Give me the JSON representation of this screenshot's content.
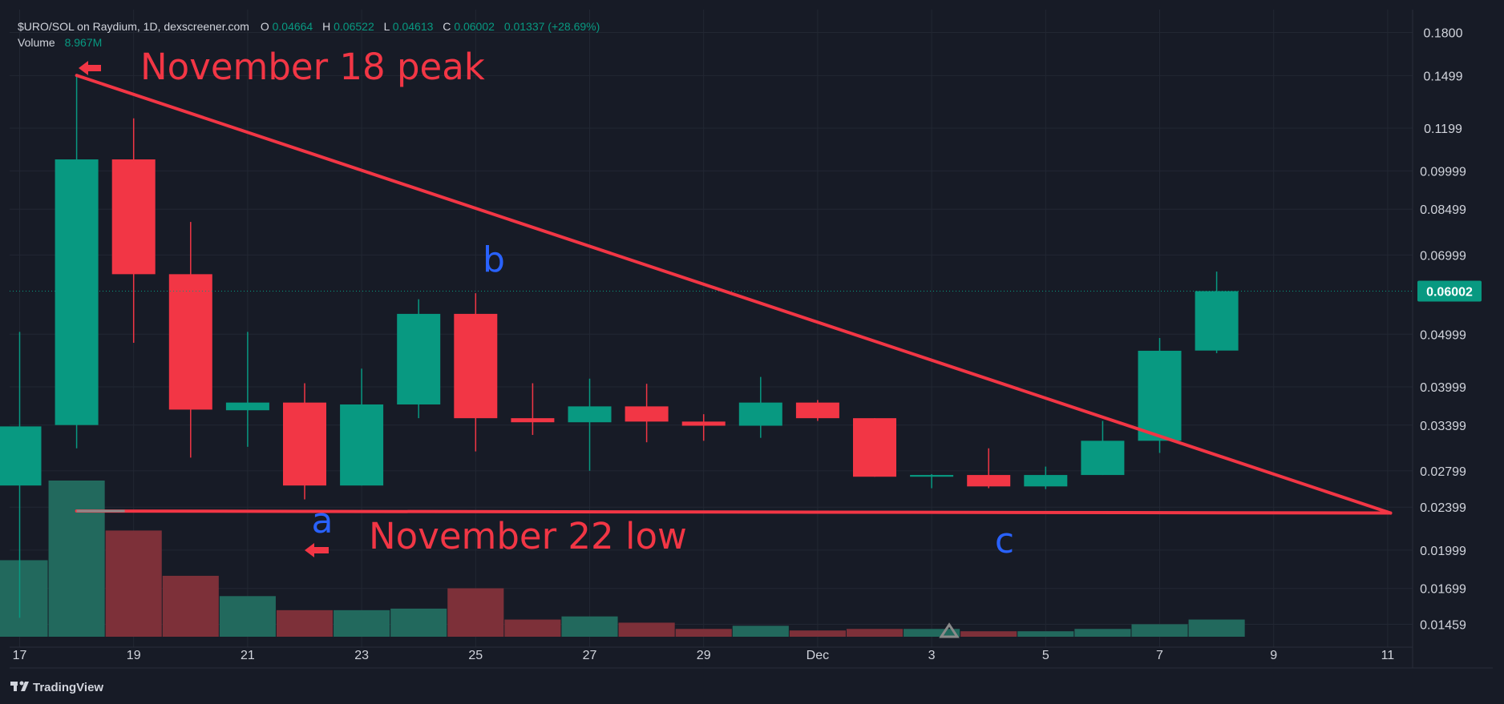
{
  "header": {
    "symbol": "$URO/SOL on Raydium, 1D, dexscreener.com",
    "o_label": "O",
    "o_value": "0.04664",
    "h_label": "H",
    "h_value": "0.06522",
    "l_label": "L",
    "l_value": "0.04613",
    "c_label": "C",
    "c_value": "0.06002",
    "change": "0.01337 (+28.69%)",
    "volume_label": "Volume",
    "volume_value": "8.967M"
  },
  "price_tag": "0.06002",
  "footer": {
    "brand": "TradingView"
  },
  "colors": {
    "background": "#171b26",
    "up": "#089981",
    "down": "#f23645",
    "up_volume": "#22695d",
    "down_volume": "#7d3039",
    "annotation_red": "#f23645",
    "annotation_blue": "#2962ff",
    "price_line": "#089981",
    "grid": "#222733"
  },
  "annotations": {
    "peak_label": "November 18 peak",
    "low_label": "November 22 low",
    "wave_a": "a",
    "wave_b": "b",
    "wave_c": "c"
  },
  "chart_data": {
    "type": "candlestick",
    "scale": "log",
    "grid": true,
    "ylim": [
      0.0142,
      0.195
    ],
    "y_ticks": [
      "0.1800",
      "0.1499",
      "0.1199",
      "0.09999",
      "0.08499",
      "0.06999",
      "0.04999",
      "0.03999",
      "0.03399",
      "0.02799",
      "0.02399",
      "0.01999",
      "0.01699",
      "0.01459"
    ],
    "x_ticks": [
      {
        "day": 17,
        "label": "17"
      },
      {
        "day": 19,
        "label": "19"
      },
      {
        "day": 21,
        "label": "21"
      },
      {
        "day": 23,
        "label": "23"
      },
      {
        "day": 25,
        "label": "25"
      },
      {
        "day": 27,
        "label": "27"
      },
      {
        "day": 29,
        "label": "29"
      },
      {
        "day": 31,
        "label": "Dec"
      },
      {
        "day": 33,
        "label": "3"
      },
      {
        "day": 35,
        "label": "5"
      },
      {
        "day": 37,
        "label": "7"
      },
      {
        "day": 39,
        "label": "9"
      },
      {
        "day": 41,
        "label": "11"
      }
    ],
    "candles": [
      {
        "date": "Nov 17",
        "day": 17,
        "open": 0.0263,
        "high": 0.0505,
        "low": 0.015,
        "close": 0.0338
      },
      {
        "date": "Nov 18",
        "day": 18,
        "open": 0.034,
        "high": 0.15,
        "low": 0.0308,
        "close": 0.105
      },
      {
        "date": "Nov 19",
        "day": 19,
        "open": 0.105,
        "high": 0.125,
        "low": 0.0482,
        "close": 0.0645
      },
      {
        "date": "Nov 20",
        "day": 20,
        "open": 0.0645,
        "high": 0.0805,
        "low": 0.0296,
        "close": 0.0363
      },
      {
        "date": "Nov 21",
        "day": 21,
        "open": 0.0362,
        "high": 0.0505,
        "low": 0.031,
        "close": 0.0374
      },
      {
        "date": "Nov 22",
        "day": 22,
        "open": 0.0374,
        "high": 0.0406,
        "low": 0.0248,
        "close": 0.0263
      },
      {
        "date": "Nov 23",
        "day": 23,
        "open": 0.0263,
        "high": 0.0432,
        "low": 0.0263,
        "close": 0.0371
      },
      {
        "date": "Nov 24",
        "day": 24,
        "open": 0.0371,
        "high": 0.058,
        "low": 0.035,
        "close": 0.0545
      },
      {
        "date": "Nov 25",
        "day": 25,
        "open": 0.0545,
        "high": 0.0595,
        "low": 0.0304,
        "close": 0.035
      },
      {
        "date": "Nov 26",
        "day": 26,
        "open": 0.035,
        "high": 0.0406,
        "low": 0.0326,
        "close": 0.0344
      },
      {
        "date": "Nov 27",
        "day": 27,
        "open": 0.0344,
        "high": 0.0414,
        "low": 0.028,
        "close": 0.0368
      },
      {
        "date": "Nov 28",
        "day": 28,
        "open": 0.0368,
        "high": 0.0405,
        "low": 0.0316,
        "close": 0.0345
      },
      {
        "date": "Nov 29",
        "day": 29,
        "open": 0.0345,
        "high": 0.0356,
        "low": 0.0318,
        "close": 0.0339
      },
      {
        "date": "Nov 30",
        "day": 30,
        "open": 0.0339,
        "high": 0.0417,
        "low": 0.0322,
        "close": 0.0374
      },
      {
        "date": "Dec 1",
        "day": 31,
        "open": 0.0374,
        "high": 0.0378,
        "low": 0.0346,
        "close": 0.035
      },
      {
        "date": "Dec 2",
        "day": 32,
        "open": 0.035,
        "high": 0.035,
        "low": 0.0273,
        "close": 0.0273
      },
      {
        "date": "Dec 3",
        "day": 33,
        "open": 0.0273,
        "high": 0.0276,
        "low": 0.026,
        "close": 0.0275
      },
      {
        "date": "Dec 4",
        "day": 34,
        "open": 0.0275,
        "high": 0.0308,
        "low": 0.026,
        "close": 0.0262
      },
      {
        "date": "Dec 5",
        "day": 35,
        "open": 0.0262,
        "high": 0.0285,
        "low": 0.0259,
        "close": 0.0275
      },
      {
        "date": "Dec 6",
        "day": 36,
        "open": 0.0275,
        "high": 0.0346,
        "low": 0.0275,
        "close": 0.0318
      },
      {
        "date": "Dec 7",
        "day": 37,
        "open": 0.0318,
        "high": 0.0492,
        "low": 0.0302,
        "close": 0.0466
      },
      {
        "date": "Dec 8",
        "day": 38,
        "open": 0.04664,
        "high": 0.06522,
        "low": 0.04613,
        "close": 0.06002
      }
    ],
    "volume_relative": [
      0.49,
      1.0,
      0.68,
      0.39,
      0.26,
      0.17,
      0.17,
      0.18,
      0.31,
      0.11,
      0.13,
      0.09,
      0.05,
      0.07,
      0.04,
      0.05,
      0.05,
      0.035,
      0.035,
      0.05,
      0.08,
      0.11
    ]
  }
}
